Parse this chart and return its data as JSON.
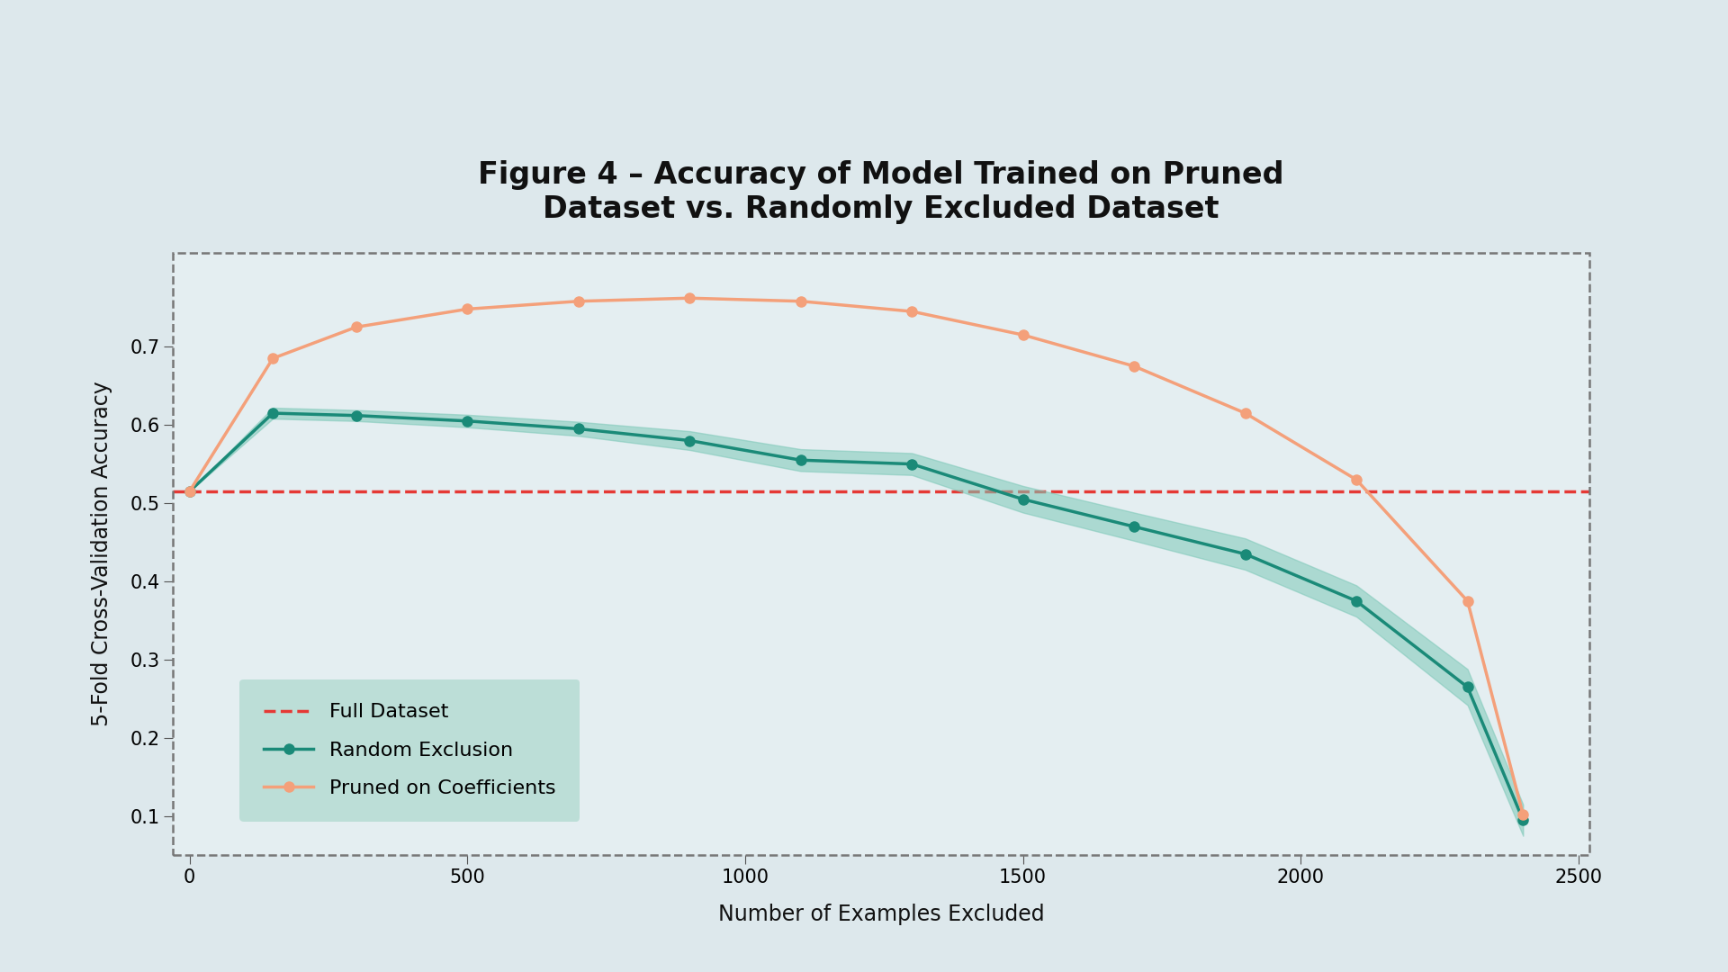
{
  "title": "Figure 4 – Accuracy of Model Trained on Pruned\nDataset vs. Randomly Excluded Dataset",
  "xlabel": "Number of Examples Excluded",
  "ylabel": "5-Fold Cross-Validation Accuracy",
  "full_dataset_acc": 0.515,
  "background_color": "#dde8ec",
  "plot_bg_color": "#e4eef1",
  "random_x": [
    0,
    150,
    300,
    500,
    700,
    900,
    1100,
    1300,
    1500,
    1700,
    1900,
    2100,
    2300,
    2400
  ],
  "random_y": [
    0.515,
    0.615,
    0.612,
    0.605,
    0.595,
    0.58,
    0.555,
    0.55,
    0.505,
    0.47,
    0.435,
    0.375,
    0.265,
    0.095
  ],
  "random_y_lower": [
    0.515,
    0.608,
    0.605,
    0.597,
    0.586,
    0.568,
    0.541,
    0.536,
    0.488,
    0.452,
    0.415,
    0.355,
    0.242,
    0.075
  ],
  "random_y_upper": [
    0.515,
    0.622,
    0.619,
    0.613,
    0.604,
    0.592,
    0.569,
    0.564,
    0.522,
    0.488,
    0.455,
    0.395,
    0.288,
    0.115
  ],
  "pruned_x": [
    0,
    150,
    300,
    500,
    700,
    900,
    1100,
    1300,
    1500,
    1700,
    1900,
    2100,
    2300,
    2400
  ],
  "pruned_y": [
    0.515,
    0.685,
    0.725,
    0.748,
    0.758,
    0.762,
    0.758,
    0.745,
    0.715,
    0.675,
    0.615,
    0.53,
    0.375,
    0.102
  ],
  "random_color": "#1a8a78",
  "pruned_color": "#f4a07a",
  "random_fill_color": "#7dc8b8",
  "full_dataset_color": "#e53935",
  "legend_bg_color": "#b8ddd5",
  "dashed_box_color": "#777777",
  "ylim": [
    0.05,
    0.82
  ],
  "xlim": [
    -30,
    2520
  ],
  "yticks": [
    0.1,
    0.2,
    0.3,
    0.4,
    0.5,
    0.6,
    0.7
  ],
  "xticks": [
    0,
    500,
    1000,
    1500,
    2000,
    2500
  ],
  "title_fontsize": 24,
  "label_fontsize": 17,
  "tick_fontsize": 15,
  "legend_fontsize": 16
}
